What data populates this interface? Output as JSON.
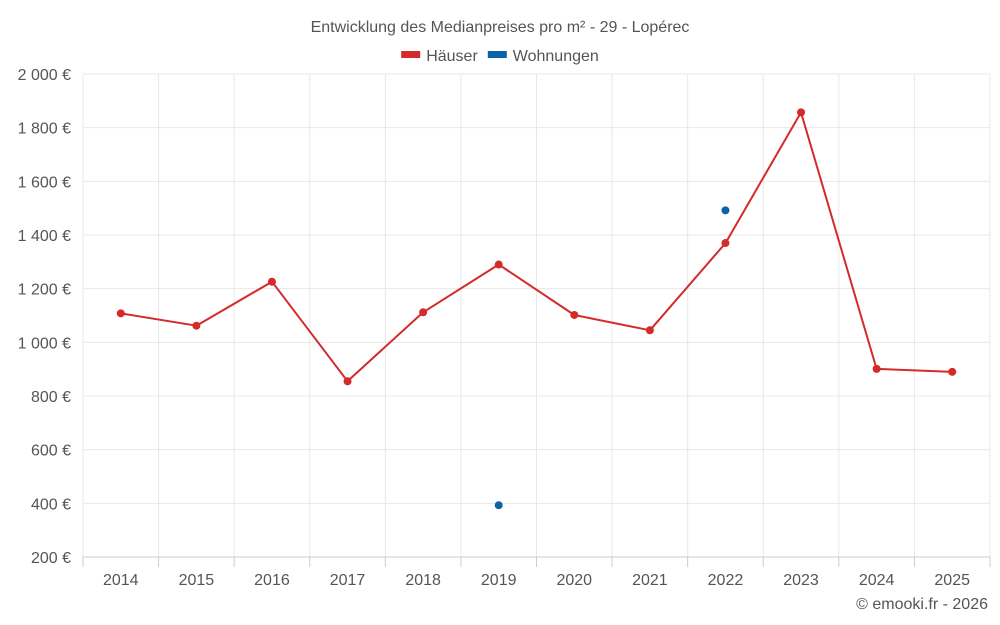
{
  "chart_data": {
    "type": "line",
    "title": "Entwicklung des Medianpreises pro m² - 29 - Lopérec",
    "categories": [
      "2014",
      "2015",
      "2016",
      "2017",
      "2018",
      "2019",
      "2020",
      "2021",
      "2022",
      "2023",
      "2024",
      "2025"
    ],
    "y_tick_labels": [
      "200 €",
      "400 €",
      "600 €",
      "800 €",
      "1 000 €",
      "1 200 €",
      "1 400 €",
      "1 600 €",
      "1 800 €",
      "2 000 €"
    ],
    "ylim": [
      200,
      2000
    ],
    "y_ticks": [
      200,
      400,
      600,
      800,
      1000,
      1200,
      1400,
      1600,
      1800,
      2000
    ],
    "grid": true,
    "legend_position": "top-center",
    "series": [
      {
        "name": "Häuser",
        "color": "#d42a2a",
        "style": "line-with-markers",
        "values": [
          1108,
          1062,
          1226,
          855,
          1112,
          1290,
          1102,
          1045,
          1370,
          1857,
          901,
          890
        ]
      },
      {
        "name": "Wohnungen",
        "color": "#0b62a4",
        "style": "markers-only",
        "values": [
          null,
          null,
          null,
          null,
          null,
          393,
          null,
          null,
          1492,
          null,
          null,
          null
        ]
      }
    ],
    "credit": "© emooki.fr - 2026"
  }
}
